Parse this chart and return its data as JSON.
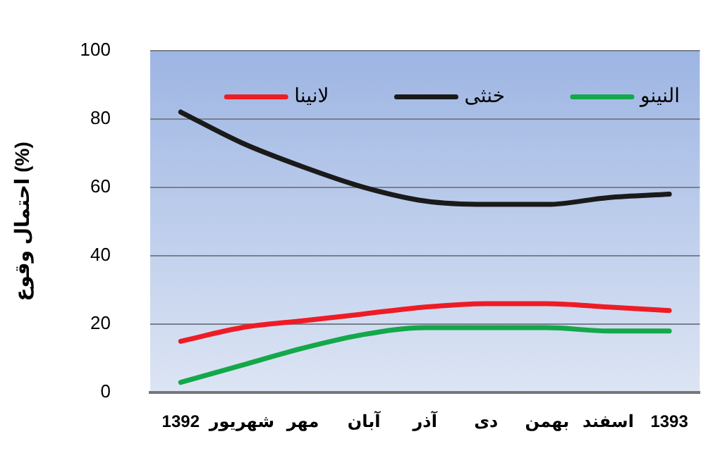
{
  "chart_data": {
    "type": "line",
    "ylabel": "احتمال وقوع (%)",
    "categories": [
      "1392",
      "شهریور",
      "مهر",
      "آبان",
      "آذر",
      "دی",
      "بهمن",
      "اسفند",
      "1393"
    ],
    "series": [
      {
        "name": "لانینا",
        "color": "#ee1c25",
        "values": [
          15,
          19,
          21,
          23,
          25,
          26,
          26,
          25,
          24
        ]
      },
      {
        "name": "خنثی",
        "color": "#1a1a1a",
        "values": [
          82,
          73,
          66,
          60,
          56,
          55,
          55,
          57,
          58
        ]
      },
      {
        "name": "النینو",
        "color": "#13a84a",
        "values": [
          3,
          8,
          13,
          17,
          19,
          19,
          19,
          18,
          18
        ]
      }
    ],
    "ylim": [
      0,
      100
    ],
    "yticks": [
      0,
      20,
      40,
      60,
      80,
      100
    ],
    "grid": "y",
    "legend": "top",
    "marker": "none"
  }
}
